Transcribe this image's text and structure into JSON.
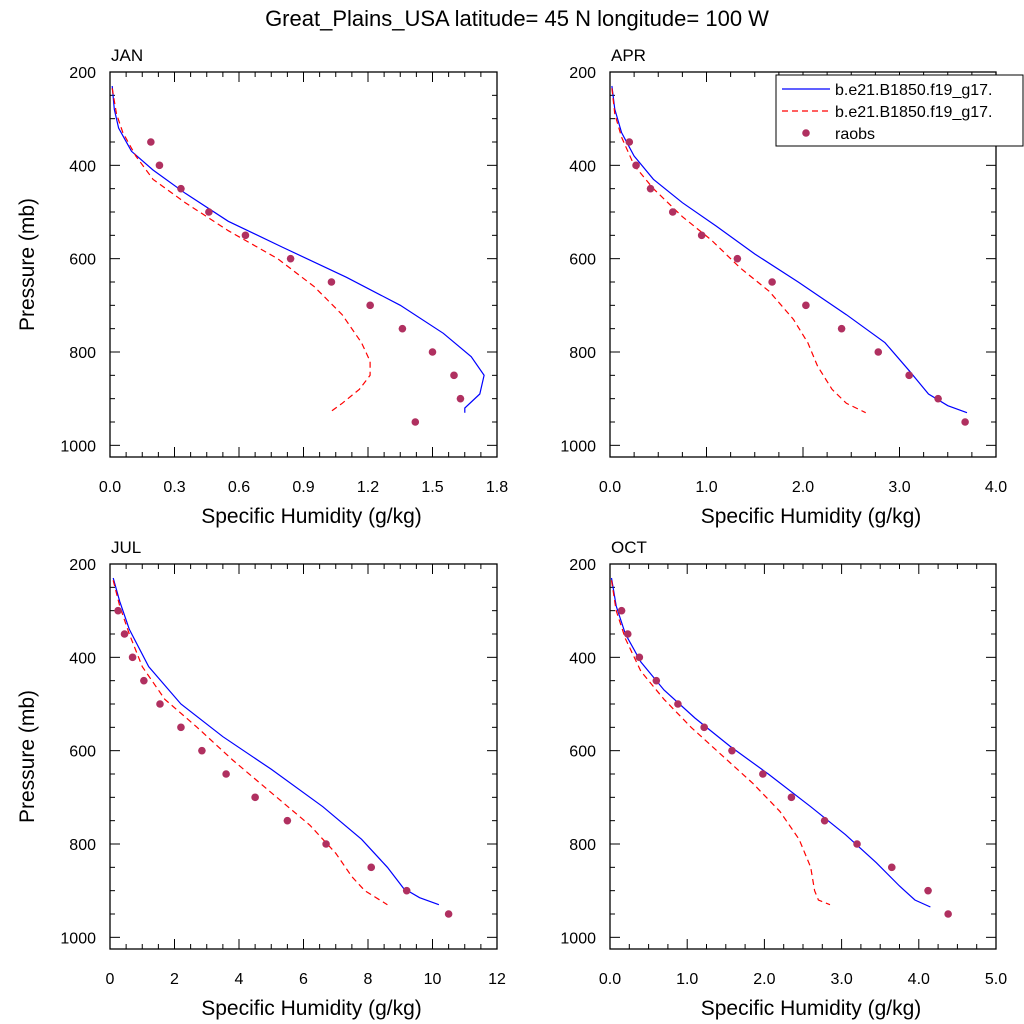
{
  "title": "Great_Plains_USA  latitude= 45 N longitude= 100 W",
  "legend": {
    "placement": "top-right",
    "items": [
      {
        "label": "b.e21.B1850.f19_g17.",
        "color": "#0000ff",
        "style": "solid"
      },
      {
        "label": "b.e21.B1850.f19_g17.",
        "color": "#ff0000",
        "style": "dashed"
      },
      {
        "label": "raobs",
        "color": "#b03060",
        "style": "marker"
      }
    ]
  },
  "chart_data": [
    {
      "type": "line",
      "title": "JAN",
      "xlabel": "Specific Humidity (g/kg)",
      "ylabel": "Pressure (mb)",
      "xlim": [
        0,
        1.8
      ],
      "ylim": [
        200,
        1025
      ],
      "y_reversed": true,
      "xticks": [
        "0.0",
        "0.3",
        "0.6",
        "0.9",
        "1.2",
        "1.5",
        "1.8"
      ],
      "yticks": [
        "200",
        "400",
        "600",
        "800",
        "1000"
      ],
      "series": [
        {
          "name": "b.e21.B1850.f19_g17.",
          "color": "#0000ff",
          "dash": false,
          "points": [
            [
              0.01,
              230
            ],
            [
              0.02,
              280
            ],
            [
              0.04,
              320
            ],
            [
              0.1,
              370
            ],
            [
              0.2,
              410
            ],
            [
              0.35,
              460
            ],
            [
              0.55,
              520
            ],
            [
              0.8,
              575
            ],
            [
              1.1,
              640
            ],
            [
              1.35,
              700
            ],
            [
              1.55,
              760
            ],
            [
              1.68,
              810
            ],
            [
              1.74,
              850
            ],
            [
              1.72,
              890
            ],
            [
              1.65,
              920
            ],
            [
              1.65,
              930
            ]
          ]
        },
        {
          "name": "b.e21.B1850.f19_g17.",
          "color": "#ff0000",
          "dash": true,
          "points": [
            [
              0.01,
              235
            ],
            [
              0.03,
              290
            ],
            [
              0.06,
              330
            ],
            [
              0.12,
              380
            ],
            [
              0.2,
              430
            ],
            [
              0.35,
              480
            ],
            [
              0.55,
              540
            ],
            [
              0.78,
              600
            ],
            [
              0.95,
              660
            ],
            [
              1.08,
              720
            ],
            [
              1.17,
              780
            ],
            [
              1.21,
              820
            ],
            [
              1.21,
              850
            ],
            [
              1.16,
              880
            ],
            [
              1.08,
              910
            ],
            [
              1.02,
              930
            ]
          ]
        },
        {
          "name": "raobs",
          "color": "#b03060",
          "marker": true,
          "points": [
            [
              0.19,
              350
            ],
            [
              0.23,
              400
            ],
            [
              0.33,
              450
            ],
            [
              0.46,
              500
            ],
            [
              0.63,
              550
            ],
            [
              0.84,
              600
            ],
            [
              1.03,
              650
            ],
            [
              1.21,
              700
            ],
            [
              1.36,
              750
            ],
            [
              1.5,
              800
            ],
            [
              1.6,
              850
            ],
            [
              1.63,
              900
            ],
            [
              1.42,
              950
            ]
          ]
        }
      ]
    },
    {
      "type": "line",
      "title": "APR",
      "xlabel": "Specific Humidity (g/kg)",
      "ylabel": "",
      "xlim": [
        0,
        4.0
      ],
      "ylim": [
        200,
        1025
      ],
      "y_reversed": true,
      "xticks": [
        "0.0",
        "1.0",
        "2.0",
        "3.0",
        "4.0"
      ],
      "yticks": [
        "200",
        "400",
        "600",
        "800",
        "1000"
      ],
      "series": [
        {
          "name": "b.e21.B1850.f19_g17.",
          "color": "#0000ff",
          "dash": false,
          "points": [
            [
              0.02,
              230
            ],
            [
              0.05,
              280
            ],
            [
              0.12,
              330
            ],
            [
              0.25,
              380
            ],
            [
              0.45,
              430
            ],
            [
              0.75,
              480
            ],
            [
              1.1,
              530
            ],
            [
              1.5,
              590
            ],
            [
              1.95,
              650
            ],
            [
              2.45,
              720
            ],
            [
              2.85,
              780
            ],
            [
              3.1,
              840
            ],
            [
              3.3,
              890
            ],
            [
              3.5,
              915
            ],
            [
              3.7,
              930
            ]
          ]
        },
        {
          "name": "b.e21.B1850.f19_g17.",
          "color": "#ff0000",
          "dash": true,
          "points": [
            [
              0.02,
              235
            ],
            [
              0.05,
              290
            ],
            [
              0.12,
              340
            ],
            [
              0.25,
              400
            ],
            [
              0.45,
              450
            ],
            [
              0.75,
              510
            ],
            [
              1.05,
              560
            ],
            [
              1.35,
              620
            ],
            [
              1.65,
              670
            ],
            [
              1.9,
              730
            ],
            [
              2.05,
              780
            ],
            [
              2.15,
              830
            ],
            [
              2.3,
              880
            ],
            [
              2.45,
              910
            ],
            [
              2.65,
              930
            ]
          ]
        },
        {
          "name": "raobs",
          "color": "#b03060",
          "marker": true,
          "points": [
            [
              0.2,
              350
            ],
            [
              0.27,
              400
            ],
            [
              0.42,
              450
            ],
            [
              0.65,
              500
            ],
            [
              0.95,
              550
            ],
            [
              1.32,
              600
            ],
            [
              1.68,
              650
            ],
            [
              2.03,
              700
            ],
            [
              2.4,
              750
            ],
            [
              2.78,
              800
            ],
            [
              3.1,
              850
            ],
            [
              3.4,
              900
            ],
            [
              3.68,
              950
            ]
          ]
        }
      ]
    },
    {
      "type": "line",
      "title": "JUL",
      "xlabel": "Specific Humidity (g/kg)",
      "ylabel": "Pressure (mb)",
      "xlim": [
        0,
        12
      ],
      "ylim": [
        200,
        1025
      ],
      "y_reversed": true,
      "xticks": [
        "0",
        "2",
        "4",
        "6",
        "8",
        "10",
        "12"
      ],
      "yticks": [
        "200",
        "400",
        "600",
        "800",
        "1000"
      ],
      "series": [
        {
          "name": "b.e21.B1850.f19_g17.",
          "color": "#0000ff",
          "dash": false,
          "points": [
            [
              0.1,
              230
            ],
            [
              0.3,
              280
            ],
            [
              0.6,
              340
            ],
            [
              1.2,
              420
            ],
            [
              2.2,
              500
            ],
            [
              3.5,
              570
            ],
            [
              5.0,
              640
            ],
            [
              6.6,
              720
            ],
            [
              7.8,
              790
            ],
            [
              8.6,
              850
            ],
            [
              9.1,
              895
            ],
            [
              9.6,
              915
            ],
            [
              10.2,
              930
            ]
          ]
        },
        {
          "name": "b.e21.B1850.f19_g17.",
          "color": "#ff0000",
          "dash": true,
          "points": [
            [
              0.1,
              235
            ],
            [
              0.3,
              290
            ],
            [
              0.6,
              350
            ],
            [
              1.0,
              420
            ],
            [
              1.7,
              490
            ],
            [
              2.7,
              550
            ],
            [
              3.8,
              620
            ],
            [
              5.0,
              690
            ],
            [
              6.2,
              760
            ],
            [
              7.0,
              820
            ],
            [
              7.5,
              870
            ],
            [
              7.9,
              900
            ],
            [
              8.6,
              930
            ]
          ]
        },
        {
          "name": "raobs",
          "color": "#b03060",
          "marker": true,
          "points": [
            [
              0.25,
              300
            ],
            [
              0.45,
              350
            ],
            [
              0.7,
              400
            ],
            [
              1.05,
              450
            ],
            [
              1.55,
              500
            ],
            [
              2.2,
              550
            ],
            [
              2.85,
              600
            ],
            [
              3.6,
              650
            ],
            [
              4.5,
              700
            ],
            [
              5.5,
              750
            ],
            [
              6.7,
              800
            ],
            [
              8.1,
              850
            ],
            [
              9.2,
              900
            ],
            [
              10.5,
              950
            ]
          ]
        }
      ]
    },
    {
      "type": "line",
      "title": "OCT",
      "xlabel": "Specific Humidity (g/kg)",
      "ylabel": "",
      "xlim": [
        0,
        5.0
      ],
      "ylim": [
        200,
        1025
      ],
      "y_reversed": true,
      "xticks": [
        "0.0",
        "1.0",
        "2.0",
        "3.0",
        "4.0",
        "5.0"
      ],
      "yticks": [
        "200",
        "400",
        "600",
        "800",
        "1000"
      ],
      "series": [
        {
          "name": "b.e21.B1850.f19_g17.",
          "color": "#0000ff",
          "dash": false,
          "points": [
            [
              0.02,
              230
            ],
            [
              0.08,
              290
            ],
            [
              0.2,
              350
            ],
            [
              0.4,
              410
            ],
            [
              0.7,
              470
            ],
            [
              1.1,
              530
            ],
            [
              1.55,
              590
            ],
            [
              2.05,
              650
            ],
            [
              2.6,
              720
            ],
            [
              3.05,
              780
            ],
            [
              3.45,
              840
            ],
            [
              3.75,
              890
            ],
            [
              3.95,
              920
            ],
            [
              4.15,
              935
            ]
          ]
        },
        {
          "name": "b.e21.B1850.f19_g17.",
          "color": "#ff0000",
          "dash": true,
          "points": [
            [
              0.02,
              235
            ],
            [
              0.08,
              300
            ],
            [
              0.2,
              360
            ],
            [
              0.4,
              430
            ],
            [
              0.7,
              490
            ],
            [
              1.05,
              550
            ],
            [
              1.45,
              610
            ],
            [
              1.85,
              670
            ],
            [
              2.2,
              730
            ],
            [
              2.45,
              790
            ],
            [
              2.6,
              850
            ],
            [
              2.65,
              900
            ],
            [
              2.7,
              920
            ],
            [
              2.85,
              930
            ]
          ]
        },
        {
          "name": "raobs",
          "color": "#b03060",
          "marker": true,
          "points": [
            [
              0.15,
              300
            ],
            [
              0.23,
              350
            ],
            [
              0.38,
              400
            ],
            [
              0.6,
              450
            ],
            [
              0.88,
              500
            ],
            [
              1.22,
              550
            ],
            [
              1.58,
              600
            ],
            [
              1.98,
              650
            ],
            [
              2.35,
              700
            ],
            [
              2.78,
              750
            ],
            [
              3.2,
              800
            ],
            [
              3.65,
              850
            ],
            [
              4.12,
              900
            ],
            [
              4.38,
              950
            ]
          ]
        }
      ]
    }
  ]
}
